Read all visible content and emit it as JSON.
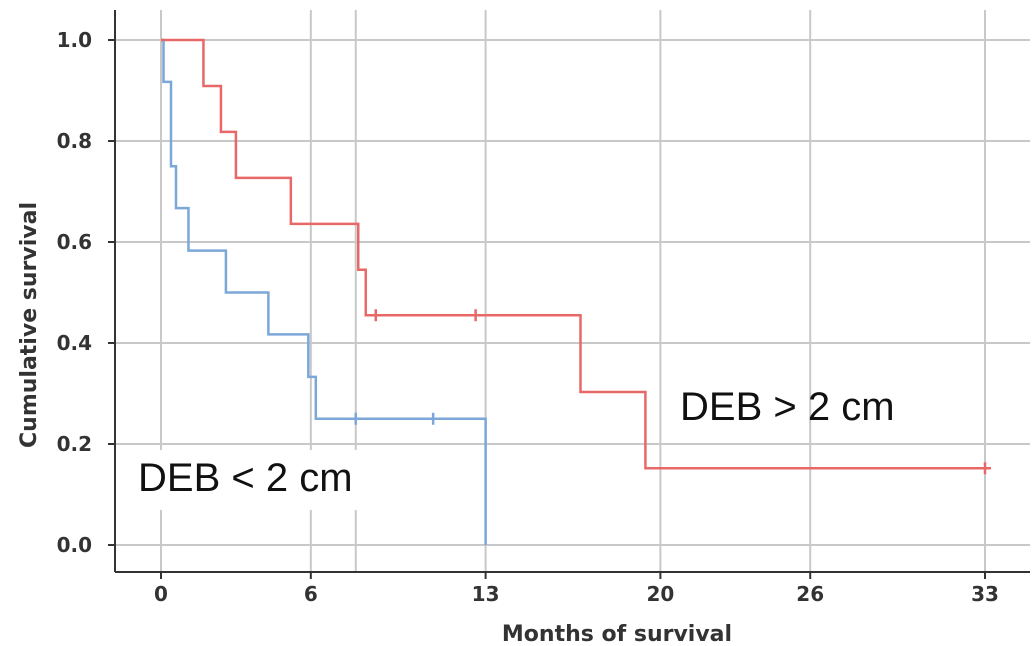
{
  "chart_data": {
    "type": "line",
    "subtype": "kaplan-meier step",
    "xlabel": "Months of survival",
    "ylabel": "Cumulative survival",
    "x_ticks": [
      0,
      6,
      13,
      20,
      26,
      33
    ],
    "y_ticks": [
      0.0,
      0.2,
      0.4,
      0.6,
      0.8,
      1.0
    ],
    "y_tick_labels": [
      "0.0",
      "0.2",
      "0.4",
      "0.6",
      "0.8",
      "1.0"
    ],
    "xlim": [
      -2,
      35
    ],
    "ylim": [
      -0.05,
      1.06
    ],
    "grid": true,
    "legend": "none",
    "series": [
      {
        "name": "DEB < 2 cm",
        "color": "#7ba7d9",
        "steps": [
          [
            0,
            1.0
          ],
          [
            0.1,
            0.917
          ],
          [
            0.4,
            0.75
          ],
          [
            0.6,
            0.667
          ],
          [
            1.1,
            0.583
          ],
          [
            2.6,
            0.5
          ],
          [
            4.3,
            0.417
          ],
          [
            5.9,
            0.333
          ],
          [
            6.2,
            0.25
          ],
          [
            13.0,
            0.0
          ]
        ],
        "end_x": 13.0,
        "censored": [
          [
            7.8,
            0.25
          ],
          [
            10.9,
            0.25
          ]
        ]
      },
      {
        "name": "DEB > 2 cm",
        "color": "#e86868",
        "steps": [
          [
            0,
            1.0
          ],
          [
            1.7,
            0.909
          ],
          [
            2.4,
            0.818
          ],
          [
            3.0,
            0.727
          ],
          [
            5.2,
            0.636
          ],
          [
            7.9,
            0.545
          ],
          [
            8.2,
            0.455
          ],
          [
            16.8,
            0.303
          ],
          [
            19.4,
            0.152
          ]
        ],
        "end_x": 33.0,
        "censored": [
          [
            8.6,
            0.455
          ],
          [
            12.6,
            0.455
          ],
          [
            33.0,
            0.152
          ]
        ]
      }
    ],
    "annotations": [
      "DEB < 2 cm",
      "DEB > 2 cm"
    ]
  }
}
